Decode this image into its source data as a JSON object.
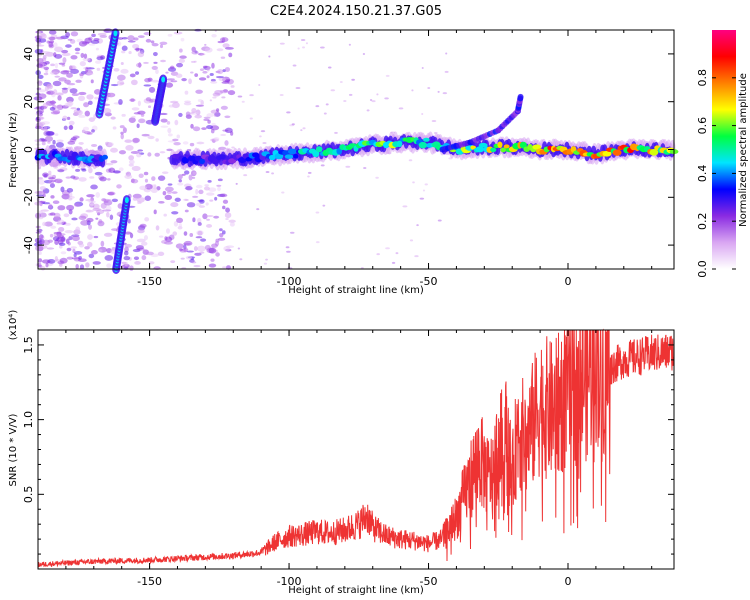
{
  "title": "C2E4.2024.150.21.37.G05",
  "chart_data": [
    {
      "type": "heatmap",
      "xlabel": "Height of straight line (km)",
      "ylabel": "Frequency (Hz)",
      "xlim": [
        -190,
        38
      ],
      "ylim": [
        -50,
        50
      ],
      "x_ticks": [
        -150,
        -100,
        -50,
        0
      ],
      "x_tick_labels": [
        "-150",
        "-100",
        "-50",
        "0"
      ],
      "y_ticks": [
        -40,
        -20,
        0,
        20,
        40
      ],
      "y_tick_labels": [
        "-40",
        "-20",
        "0",
        "20",
        "40"
      ],
      "colorbar": {
        "label": "Normalized spectral amplitude",
        "range": [
          0,
          1
        ],
        "ticks": [
          0.0,
          0.2,
          0.4,
          0.6,
          0.8
        ],
        "tick_labels": [
          "0.0",
          "0.2",
          "0.4",
          "0.6",
          "0.8"
        ],
        "colormap": [
          "#ffffff",
          "#d9a6f2",
          "#8a2be2",
          "#0000ff",
          "#00e5ff",
          "#00ff40",
          "#ffff00",
          "#ff8000",
          "#ff0000",
          "#ff0080"
        ]
      },
      "main_track": [
        {
          "x": -190,
          "y": -3,
          "amp": 0.35
        },
        {
          "x": -180,
          "y": -3,
          "amp": 0.4
        },
        {
          "x": -170,
          "y": -4,
          "amp": 0.35
        },
        {
          "x": -140,
          "y": -4,
          "amp": 0.3
        },
        {
          "x": -130,
          "y": -4,
          "amp": 0.3
        },
        {
          "x": -120,
          "y": -4,
          "amp": 0.3
        },
        {
          "x": -110,
          "y": -3,
          "amp": 0.35
        },
        {
          "x": -100,
          "y": -2,
          "amp": 0.4
        },
        {
          "x": -90,
          "y": -1,
          "amp": 0.45
        },
        {
          "x": -80,
          "y": 0,
          "amp": 0.5
        },
        {
          "x": -70,
          "y": 2,
          "amp": 0.55
        },
        {
          "x": -60,
          "y": 3,
          "amp": 0.55
        },
        {
          "x": -50,
          "y": 3,
          "amp": 0.5
        },
        {
          "x": -40,
          "y": 0,
          "amp": 0.55
        },
        {
          "x": -30,
          "y": 1,
          "amp": 0.6
        },
        {
          "x": -20,
          "y": 1,
          "amp": 0.65
        },
        {
          "x": -10,
          "y": 0,
          "amp": 0.8
        },
        {
          "x": 0,
          "y": 0,
          "amp": 0.9
        },
        {
          "x": 10,
          "y": -2,
          "amp": 0.7
        },
        {
          "x": 20,
          "y": 0,
          "amp": 0.75
        },
        {
          "x": 30,
          "y": 0,
          "amp": 0.7
        },
        {
          "x": 38,
          "y": 0,
          "amp": 0.65
        }
      ],
      "branch_track": [
        {
          "x": -45,
          "y": 0
        },
        {
          "x": -35,
          "y": 3
        },
        {
          "x": -25,
          "y": 8
        },
        {
          "x": -18,
          "y": 16
        },
        {
          "x": -17,
          "y": 22
        }
      ],
      "streaks": [
        {
          "x1": -168,
          "y1": 15,
          "x2": -162,
          "y2": 50
        },
        {
          "x1": -148,
          "y1": 12,
          "x2": -145,
          "y2": 30
        },
        {
          "x1": -162,
          "y1": -50,
          "x2": -158,
          "y2": -20
        }
      ]
    },
    {
      "type": "line",
      "xlabel": "Height of straight line (km)",
      "ylabel": "SNR (10 * V/V)",
      "y_scale_label": "(x10⁴)",
      "xlim": [
        -190,
        38
      ],
      "ylim": [
        0,
        16000
      ],
      "x_ticks": [
        -150,
        -100,
        -50,
        0
      ],
      "x_tick_labels": [
        "-150",
        "-100",
        "-50",
        "0"
      ],
      "y_ticks": [
        5000,
        10000,
        15000
      ],
      "y_tick_labels": [
        "0.5",
        "1.0",
        "1.5"
      ],
      "line_color": "#ee3333",
      "series": [
        {
          "x": [
            -190,
            -180,
            -170,
            -160,
            -150,
            -140,
            -130,
            -120,
            -110,
            -105,
            -100,
            -95,
            -90,
            -85,
            -80,
            -75,
            -72,
            -70,
            -65,
            -60,
            -55,
            -50,
            -45,
            -40,
            -35,
            -32,
            -28,
            -25,
            -22,
            -20,
            -18,
            -15,
            -12,
            -10,
            -5,
            0,
            5,
            8,
            10,
            12,
            15,
            20,
            25,
            30,
            35,
            38
          ],
          "values": [
            300,
            400,
            500,
            550,
            600,
            700,
            800,
            900,
            1100,
            1800,
            2200,
            2300,
            2500,
            2400,
            2600,
            3000,
            3600,
            2800,
            2200,
            2000,
            1900,
            1700,
            2000,
            3500,
            6000,
            7500,
            6000,
            8000,
            9000,
            6000,
            9500,
            8500,
            10000,
            11000,
            10500,
            12000,
            12500,
            13500,
            15000,
            13000,
            13500,
            14000,
            14200,
            14400,
            14500,
            14600
          ]
        }
      ]
    }
  ]
}
